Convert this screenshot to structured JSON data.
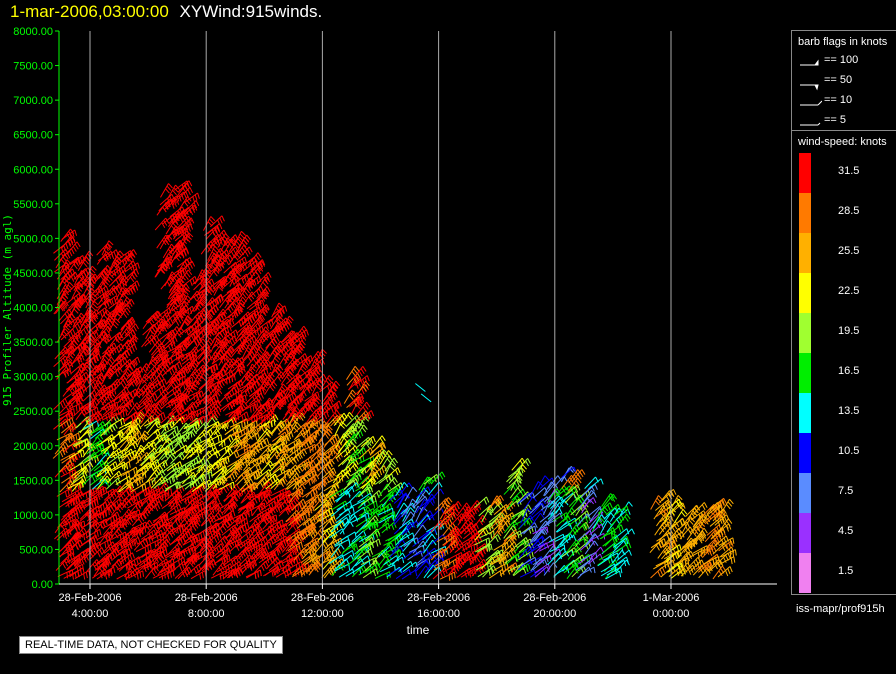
{
  "title": {
    "time": "1-mar-2006,03:00:00",
    "name": "XYWind:915winds."
  },
  "chart_data": {
    "type": "scatter",
    "xlabel": "time",
    "ylabel": "915 Profiler Altitude (m agl)",
    "ylim": [
      0,
      8000
    ],
    "y_ticks": [
      "0.00",
      "500.00",
      "1000.00",
      "1500.00",
      "2000.00",
      "2500.00",
      "3000.00",
      "3500.00",
      "4000.00",
      "4500.00",
      "5000.00",
      "5500.00",
      "6000.00",
      "6500.00",
      "7000.00",
      "7500.00",
      "8000.00"
    ],
    "x_ticks": [
      {
        "date": "28-Feb-2006",
        "time": "4:00:00"
      },
      {
        "date": "28-Feb-2006",
        "time": "8:00:00"
      },
      {
        "date": "28-Feb-2006",
        "time": "12:00:00"
      },
      {
        "date": "28-Feb-2006",
        "time": "16:00:00"
      },
      {
        "date": "28-Feb-2006",
        "time": "20:00:00"
      },
      {
        "date": "1-Mar-2006",
        "time": "0:00:00"
      }
    ],
    "vertical_grid": true,
    "series_colors": {
      "axis": "#00ff00",
      "grid": "#aaaaaa"
    },
    "wind_profiles": [
      {
        "hour": 3.0,
        "top_alt": 5000,
        "low_kt": 32,
        "mid_kt": 30,
        "high_kt": 32
      },
      {
        "hour": 3.5,
        "top_alt": 4600,
        "low_kt": 32,
        "mid_kt": 22,
        "high_kt": 32
      },
      {
        "hour": 4.0,
        "top_alt": 4500,
        "low_kt": 32,
        "mid_kt": 16,
        "high_kt": 32
      },
      {
        "hour": 4.5,
        "top_alt": 4800,
        "low_kt": 32,
        "mid_kt": 22,
        "high_kt": 32
      },
      {
        "hour": 5.0,
        "top_alt": 4700,
        "low_kt": 32,
        "mid_kt": 24,
        "high_kt": 32
      },
      {
        "hour": 5.5,
        "top_alt": 3000,
        "low_kt": 32,
        "mid_kt": 24,
        "high_kt": 32
      },
      {
        "hour": 6.0,
        "top_alt": 3800,
        "low_kt": 32,
        "mid_kt": 22,
        "high_kt": 32
      },
      {
        "hour": 6.5,
        "top_alt": 5600,
        "low_kt": 32,
        "mid_kt": 20,
        "high_kt": 32
      },
      {
        "hour": 7.0,
        "top_alt": 5700,
        "low_kt": 32,
        "mid_kt": 20,
        "high_kt": 32
      },
      {
        "hour": 7.5,
        "top_alt": 4400,
        "low_kt": 32,
        "mid_kt": 22,
        "high_kt": 32
      },
      {
        "hour": 8.0,
        "top_alt": 5200,
        "low_kt": 32,
        "mid_kt": 22,
        "high_kt": 32
      },
      {
        "hour": 8.5,
        "top_alt": 4900,
        "low_kt": 32,
        "mid_kt": 24,
        "high_kt": 32
      },
      {
        "hour": 9.0,
        "top_alt": 4900,
        "low_kt": 32,
        "mid_kt": 26,
        "high_kt": 32
      },
      {
        "hour": 9.5,
        "top_alt": 4600,
        "low_kt": 32,
        "mid_kt": 26,
        "high_kt": 32
      },
      {
        "hour": 10.0,
        "top_alt": 3900,
        "low_kt": 32,
        "mid_kt": 24,
        "high_kt": 32
      },
      {
        "hour": 10.5,
        "top_alt": 3700,
        "low_kt": 32,
        "mid_kt": 26,
        "high_kt": 32
      },
      {
        "hour": 11.0,
        "top_alt": 3600,
        "low_kt": 30,
        "mid_kt": 26,
        "high_kt": 32
      },
      {
        "hour": 11.5,
        "top_alt": 3200,
        "low_kt": 28,
        "mid_kt": 28,
        "high_kt": 32
      },
      {
        "hour": 12.0,
        "top_alt": 2800,
        "low_kt": 24,
        "mid_kt": 28,
        "high_kt": 32
      },
      {
        "hour": 12.5,
        "top_alt": 2300,
        "low_kt": 14,
        "mid_kt": 22,
        "high_kt": 32
      },
      {
        "hour": 13.0,
        "top_alt": 3000,
        "low_kt": 14,
        "mid_kt": 18,
        "high_kt": 30
      },
      {
        "hour": 13.5,
        "top_alt": 2000,
        "low_kt": 18,
        "mid_kt": 24,
        "high_kt": 28
      },
      {
        "hour": 14.0,
        "top_alt": 1800,
        "low_kt": 16,
        "mid_kt": 20,
        "high_kt": 30
      },
      {
        "hour": 14.5,
        "top_alt": 1300,
        "low_kt": 12,
        "mid_kt": 14,
        "high_kt": 16
      },
      {
        "hour": 15.0,
        "top_alt": 1200,
        "low_kt": 8,
        "mid_kt": 16,
        "high_kt": 14
      },
      {
        "hour": 15.5,
        "top_alt": 1500,
        "low_kt": 12,
        "mid_kt": 18,
        "high_kt": 20
      },
      {
        "hour": 16.0,
        "top_alt": 1100,
        "low_kt": 30,
        "mid_kt": 20,
        "high_kt": 16
      },
      {
        "hour": 16.5,
        "top_alt": 1000,
        "low_kt": 32,
        "mid_kt": 32,
        "high_kt": 28
      },
      {
        "hour": 17.0,
        "top_alt": 1000,
        "low_kt": 32,
        "mid_kt": 30,
        "high_kt": 26
      },
      {
        "hour": 17.5,
        "top_alt": 1100,
        "low_kt": 20,
        "mid_kt": 24,
        "high_kt": 22
      },
      {
        "hour": 18.0,
        "top_alt": 1100,
        "low_kt": 26,
        "mid_kt": 18,
        "high_kt": 20
      },
      {
        "hour": 18.5,
        "top_alt": 1700,
        "low_kt": 18,
        "mid_kt": 20,
        "high_kt": 24
      },
      {
        "hour": 19.0,
        "top_alt": 1300,
        "low_kt": 10,
        "mid_kt": 6,
        "high_kt": 16
      },
      {
        "hour": 19.5,
        "top_alt": 1400,
        "low_kt": 6,
        "mid_kt": 10,
        "high_kt": 18
      },
      {
        "hour": 20.0,
        "top_alt": 1600,
        "low_kt": 14,
        "mid_kt": 8,
        "high_kt": 12
      },
      {
        "hour": 20.5,
        "top_alt": 1500,
        "low_kt": 18,
        "mid_kt": 28,
        "high_kt": 20
      },
      {
        "hour": 21.0,
        "top_alt": 1400,
        "low_kt": 6,
        "mid_kt": 14,
        "high_kt": 24
      },
      {
        "hour": 21.5,
        "top_alt": 1100,
        "low_kt": 16,
        "mid_kt": 20,
        "high_kt": 12
      },
      {
        "hour": 22.0,
        "top_alt": 1000,
        "low_kt": 14,
        "mid_kt": 16,
        "high_kt": 18
      },
      {
        "hour": 23.5,
        "top_alt": 1200,
        "low_kt": 26,
        "mid_kt": 24,
        "high_kt": 26
      },
      {
        "hour": 24.0,
        "top_alt": 1100,
        "low_kt": 24,
        "mid_kt": 28,
        "high_kt": 30
      },
      {
        "hour": 24.5,
        "top_alt": 1000,
        "low_kt": 26,
        "mid_kt": 24,
        "high_kt": 28
      },
      {
        "hour": 25.0,
        "top_alt": 1000,
        "low_kt": 28,
        "mid_kt": 22,
        "high_kt": 30
      },
      {
        "hour": 25.5,
        "top_alt": 1100,
        "low_kt": 26,
        "mid_kt": 20,
        "high_kt": 22
      }
    ],
    "isolated_barbs": [
      {
        "hour": 15.2,
        "alt": 2900,
        "kt": 13
      },
      {
        "hour": 15.4,
        "alt": 2750,
        "kt": 13
      }
    ]
  },
  "legend": {
    "barb_title": "barb flags in knots",
    "barb_items": [
      "== 100",
      "== 50",
      "== 10",
      "== 5"
    ],
    "speed_title": "wind-speed: knots",
    "colorbar": [
      {
        "label": "31.5",
        "color": "#ff0000"
      },
      {
        "label": "28.5",
        "color": "#ff7a00"
      },
      {
        "label": "25.5",
        "color": "#ffb000"
      },
      {
        "label": "22.5",
        "color": "#ffff00"
      },
      {
        "label": "19.5",
        "color": "#a0ff30"
      },
      {
        "label": "16.5",
        "color": "#00ee00"
      },
      {
        "label": "13.5",
        "color": "#00ffff"
      },
      {
        "label": "10.5",
        "color": "#0000ff"
      },
      {
        "label": "7.5",
        "color": "#5a8cff"
      },
      {
        "label": "4.5",
        "color": "#9a30ff"
      },
      {
        "label": "1.5",
        "color": "#f080f0"
      }
    ]
  },
  "footer": {
    "source": "iss-mapr/prof915h",
    "qc_note": "REAL-TIME DATA, NOT CHECKED FOR QUALITY"
  }
}
